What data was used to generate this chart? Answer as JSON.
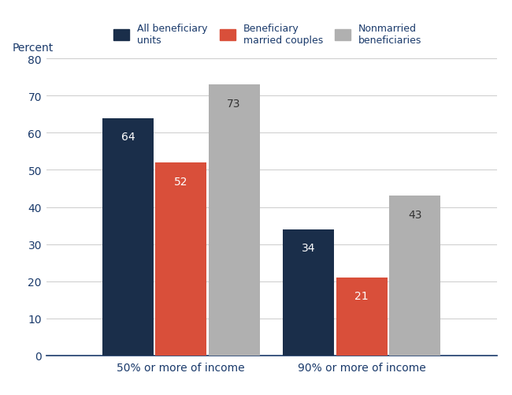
{
  "groups": [
    "50% or more of income",
    "90% or more of income"
  ],
  "categories": [
    "All beneficiary\nunits",
    "Beneficiary\nmarried couples",
    "Nonmarried\nbeneficiaries"
  ],
  "values": [
    [
      64,
      52,
      73
    ],
    [
      34,
      21,
      43
    ]
  ],
  "colors": [
    "#1a2e4a",
    "#d94f3a",
    "#b0b0b0"
  ],
  "ylabel": "Percent",
  "ylim": [
    0,
    80
  ],
  "yticks": [
    0,
    10,
    20,
    30,
    40,
    50,
    60,
    70,
    80
  ],
  "bar_width": 0.13,
  "group_centers": [
    0.27,
    0.73
  ],
  "label_colors": [
    "#ffffff",
    "#ffffff",
    "#333333"
  ],
  "axis_color": "#1a3a6b",
  "tick_color": "#1a3a6b",
  "background_color": "#ffffff",
  "grid_color": "#cccccc",
  "bottom_spine_color": "#1a3a6b",
  "legend_labels": [
    "All beneficiary\nunits",
    "Beneficiary\nmarried couples",
    "Nonmarried\nbeneficiaries"
  ],
  "label_fontsize": 10,
  "tick_fontsize": 10,
  "legend_fontsize": 9
}
